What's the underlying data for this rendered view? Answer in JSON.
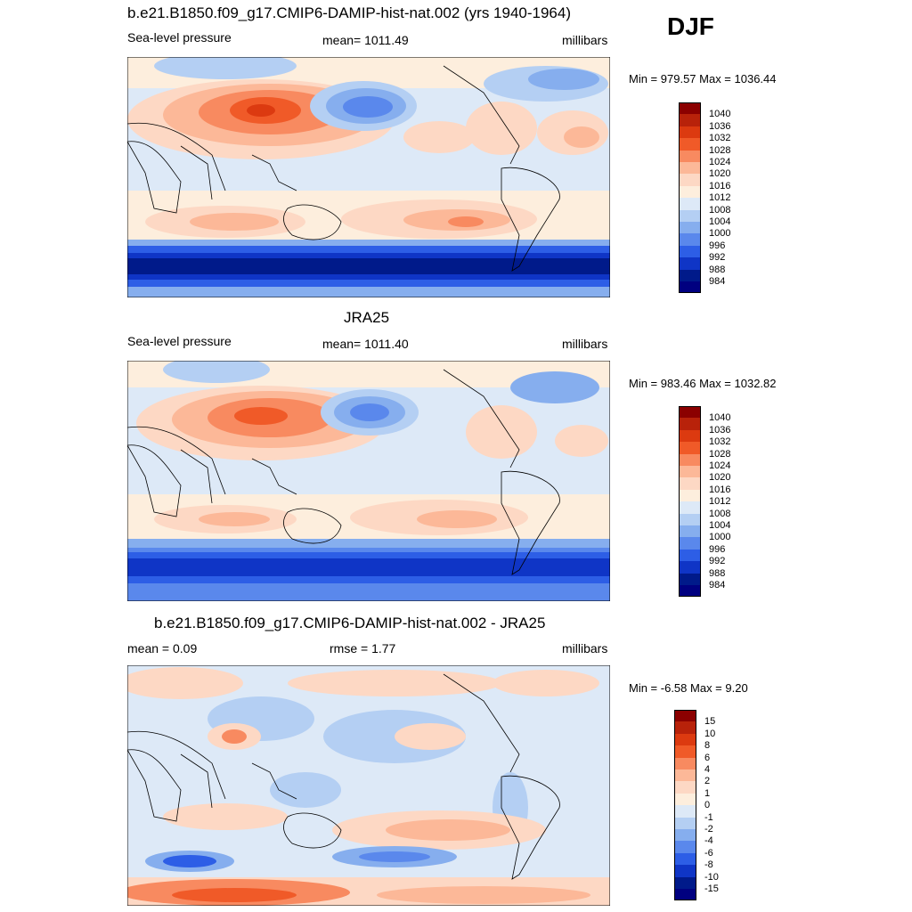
{
  "season": "DJF",
  "panels": [
    {
      "title": "b.e21.B1850.f09_g17.CMIP6-DAMIP-hist-nat.002 (yrs 1940-1964)",
      "left_text": "Sea-level pressure",
      "center_text": "mean= 1011.49",
      "right_text": "millibars",
      "minmax": "Min = 979.57 Max = 1036.44"
    },
    {
      "title": "JRA25",
      "left_text": "Sea-level pressure",
      "center_text": "mean= 1011.40",
      "right_text": "millibars",
      "minmax": "Min = 983.46 Max = 1032.82"
    },
    {
      "title": "b.e21.B1850.f09_g17.CMIP6-DAMIP-hist-nat.002 - JRA25",
      "left_text": "mean =   0.09",
      "center_text": "rmse =   1.77",
      "right_text": "millibars",
      "minmax": "Min =  -6.58 Max =   9.20"
    }
  ],
  "colorbars": {
    "slp": {
      "labels": [
        "1040",
        "1036",
        "1032",
        "1028",
        "1024",
        "1020",
        "1016",
        "1012",
        "1008",
        "1004",
        "1000",
        "996",
        "992",
        "988",
        "984"
      ],
      "colors": [
        "#8b0000",
        "#b8220a",
        "#dc3a10",
        "#f05a28",
        "#f88a60",
        "#fcb898",
        "#fdd8c4",
        "#fdeedd",
        "#dde9f7",
        "#b4cff3",
        "#86aeee",
        "#5a88ec",
        "#2d5ee6",
        "#0f35c6",
        "#001a8a",
        "#000080"
      ]
    },
    "diff": {
      "labels": [
        "15",
        "10",
        "8",
        "6",
        "4",
        "2",
        "1",
        "0",
        "-1",
        "-2",
        "-4",
        "-6",
        "-8",
        "-10",
        "-15"
      ],
      "colors": [
        "#8b0000",
        "#b8220a",
        "#dc3a10",
        "#f05a28",
        "#f88a60",
        "#fcb898",
        "#fdd8c4",
        "#fdeedd",
        "#dde9f7",
        "#b4cff3",
        "#86aeee",
        "#5a88ec",
        "#2d5ee6",
        "#0f35c6",
        "#001a8a",
        "#000080"
      ]
    }
  }
}
